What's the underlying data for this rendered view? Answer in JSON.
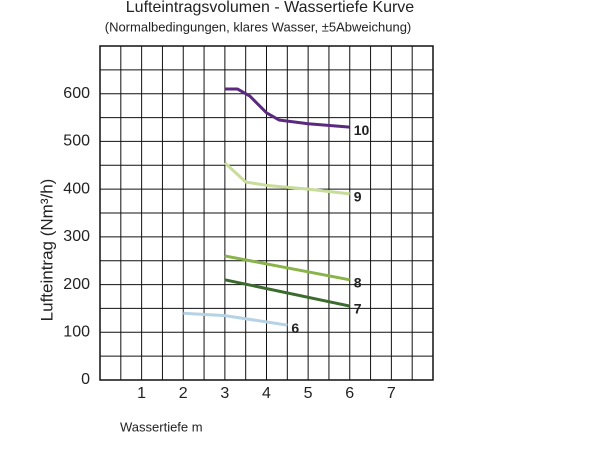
{
  "chart_data": {
    "type": "line",
    "title": "Lufteintragsvolumen - Wassertiefe Kurve",
    "subtitle": "(Normalbedingungen, klares Wasser, ±5Abweichung)",
    "x_label": "Wassertiefe m",
    "y_label": "Lufteintrag (Nm³/h)",
    "xlim": [
      0,
      8
    ],
    "ylim": [
      0,
      700
    ],
    "xticks": [
      1,
      2,
      3,
      4,
      5,
      6,
      7
    ],
    "yticks": [
      0,
      100,
      200,
      300,
      400,
      500,
      600
    ],
    "xgrid": [
      0.5,
      1,
      1.5,
      2,
      2.5,
      3,
      3.5,
      4,
      4.5,
      5,
      5.5,
      6,
      6.5,
      7,
      7.5
    ],
    "ygrid": [
      50,
      100,
      150,
      200,
      250,
      300,
      350,
      400,
      450,
      500,
      550,
      600,
      650
    ],
    "grid": true,
    "series": [
      {
        "name": "10",
        "color": "#5b2a7e",
        "x": [
          3,
          3.3,
          3.6,
          4,
          4.3,
          5,
          6
        ],
        "values": [
          610,
          610,
          595,
          560,
          545,
          537,
          530
        ]
      },
      {
        "name": "9",
        "color": "#c8dd9a",
        "x": [
          3,
          3.5,
          4,
          5,
          6
        ],
        "values": [
          455,
          415,
          408,
          400,
          390
        ]
      },
      {
        "name": "8",
        "color": "#8ab34a",
        "x": [
          3,
          6
        ],
        "values": [
          260,
          210
        ]
      },
      {
        "name": "7",
        "color": "#3c6b2e",
        "x": [
          3,
          6
        ],
        "values": [
          210,
          155
        ]
      },
      {
        "name": "6",
        "color": "#b6d3e6",
        "x": [
          2,
          3,
          4.5
        ],
        "values": [
          140,
          135,
          115
        ]
      }
    ]
  }
}
